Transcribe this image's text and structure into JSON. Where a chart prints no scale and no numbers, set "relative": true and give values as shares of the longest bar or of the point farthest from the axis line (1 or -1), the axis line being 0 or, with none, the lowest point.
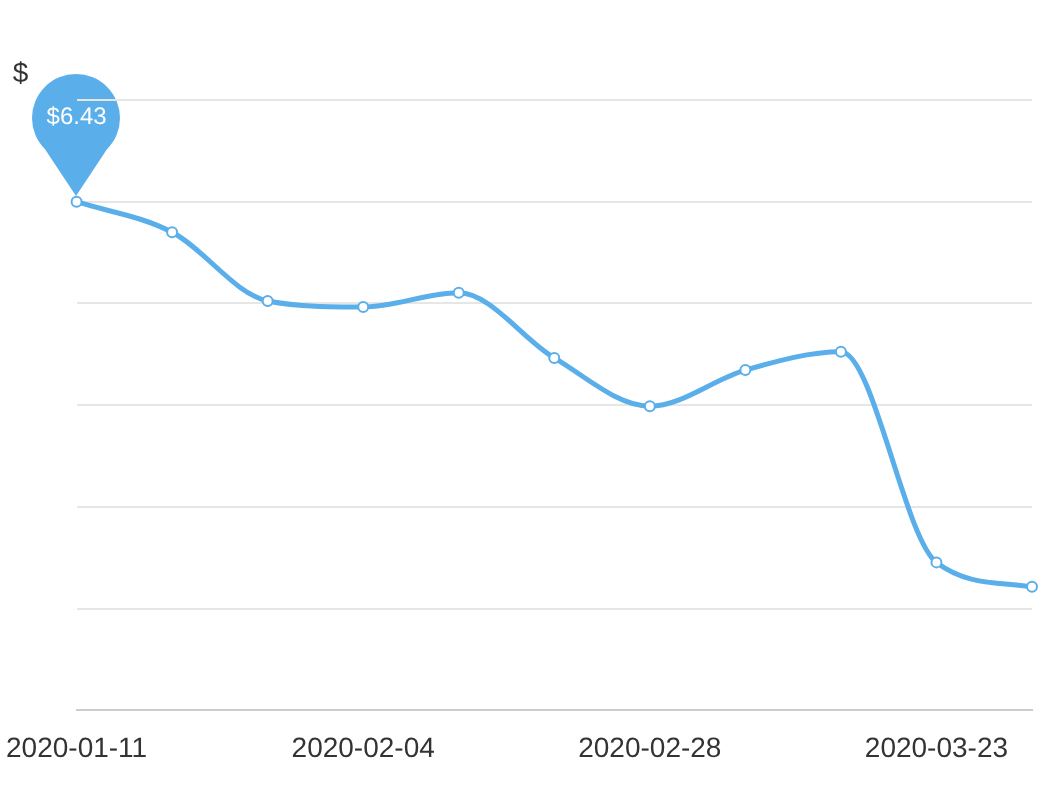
{
  "chart_data": {
    "type": "line",
    "relative": true,
    "annotations": [
      "$",
      "$6.43"
    ],
    "categories": [
      "2020-01-11",
      null,
      null,
      "2020-02-04",
      null,
      null,
      "2020-02-28",
      null,
      null,
      "2020-03-23",
      null
    ],
    "series": [
      {
        "color": "#5aaeea",
        "values": [
          1,
          0.94,
          0.805,
          0.793,
          0.821,
          0.693,
          0.598,
          0.669,
          0.705,
          0.291,
          0.243
        ]
      }
    ],
    "grid": "y",
    "marker": "circle"
  }
}
